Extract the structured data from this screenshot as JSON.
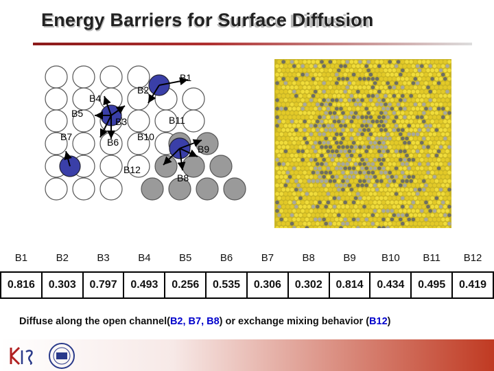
{
  "title": "Energy Barriers for Surface Diffusion",
  "diagram": {
    "labels": [
      "B1",
      "B2",
      "B3",
      "B4",
      "B5",
      "B6",
      "B7",
      "B8",
      "B9",
      "B10",
      "B11",
      "B12"
    ]
  },
  "table": {
    "headers": [
      "B1",
      "B2",
      "B3",
      "B4",
      "B5",
      "B6",
      "B7",
      "B8",
      "B9",
      "B10",
      "B11",
      "B12"
    ],
    "values": [
      "0.816",
      "0.303",
      "0.797",
      "0.493",
      "0.256",
      "0.535",
      "0.306",
      "0.302",
      "0.814",
      "0.434",
      "0.495",
      "0.419"
    ]
  },
  "caption": {
    "prefix": "Diffuse along the open channel(",
    "hl1": "B2, B7, B8",
    "mid": ") or exchange mixing behavior (",
    "hl2": "B12",
    "suffix": ")"
  },
  "colors": {
    "accent": "#0000cc",
    "adatom": "#3a3fa8",
    "footer": "#c03a22"
  }
}
